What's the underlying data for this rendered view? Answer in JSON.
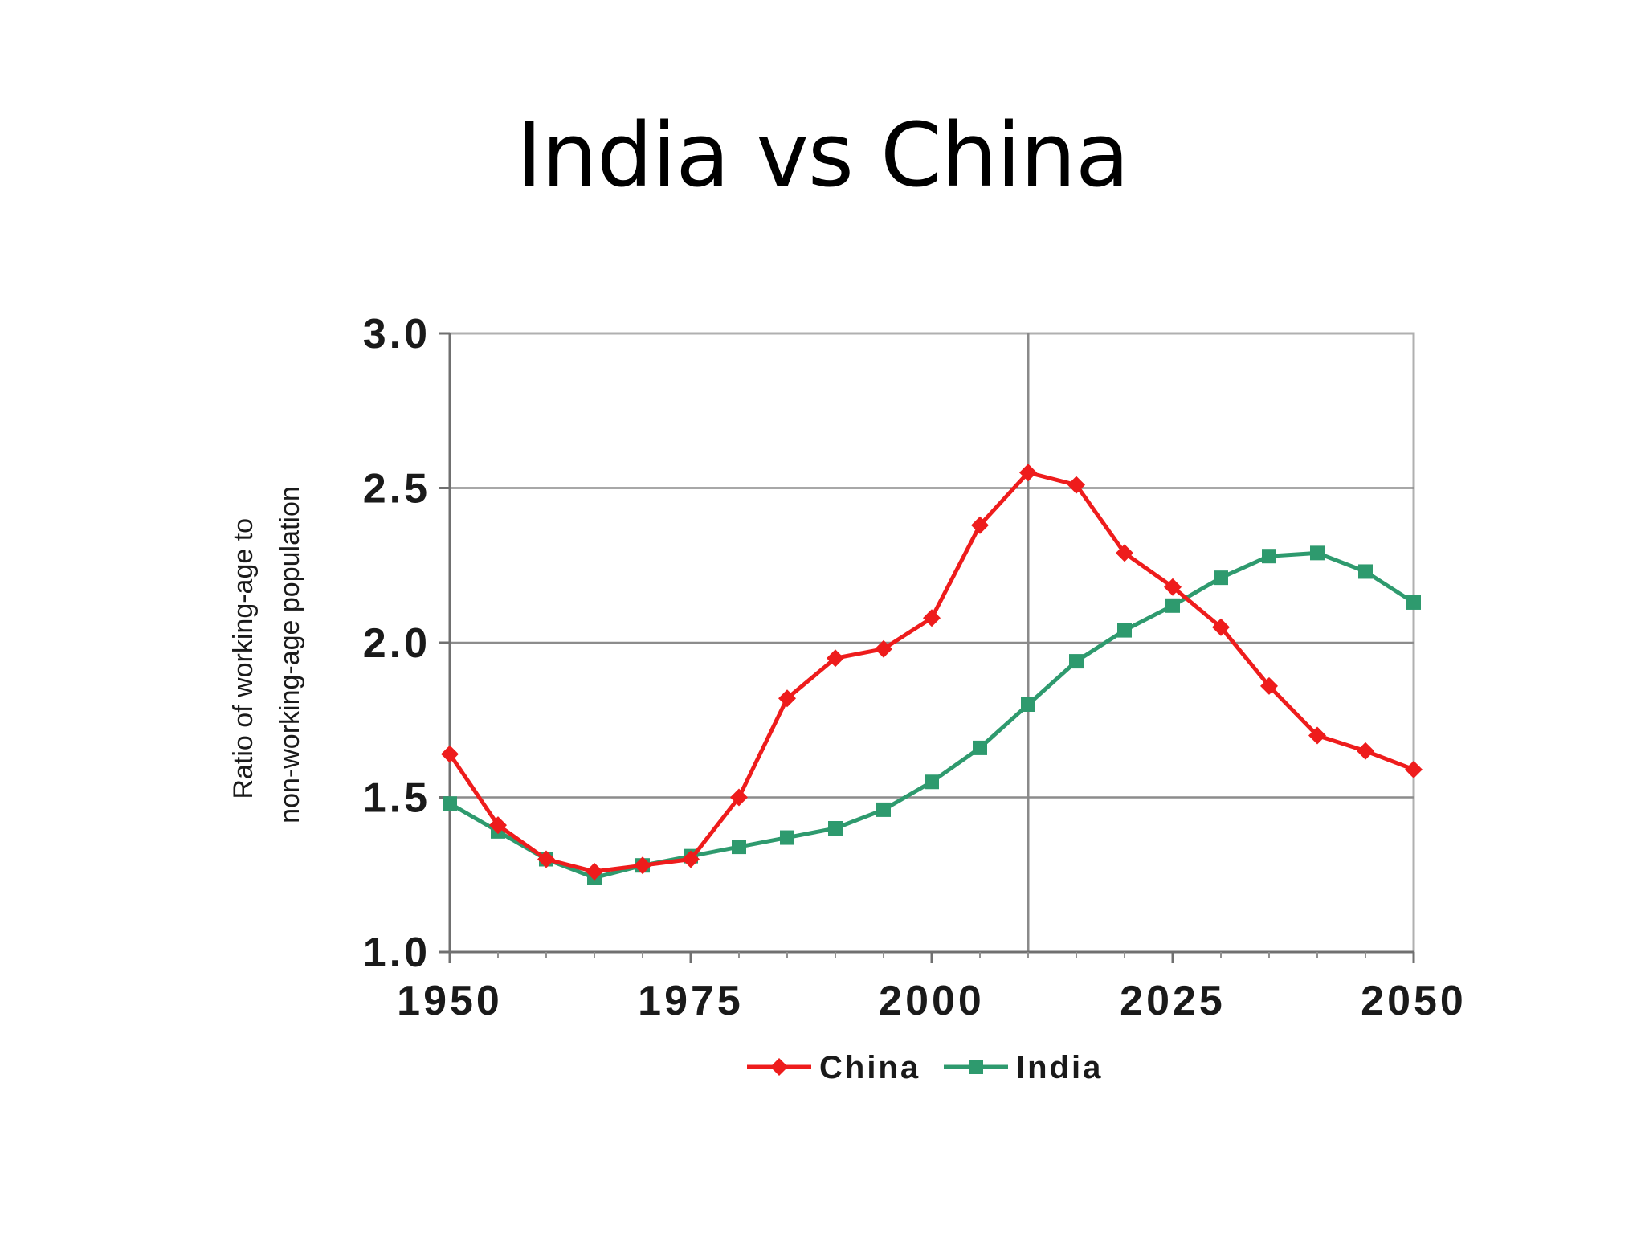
{
  "slide": {
    "title": "India vs China"
  },
  "chart_data": {
    "type": "line",
    "title": "",
    "xlabel": "",
    "ylabel": "Ratio of working-age to non-working-age population",
    "ylabel_lines": [
      "Ratio of working-age to",
      "non-working-age population"
    ],
    "x_ticks": [
      "1950",
      "1975",
      "2000",
      "2025",
      "2050"
    ],
    "y_ticks": [
      "1.0",
      "1.5",
      "2.0",
      "2.5",
      "3.0"
    ],
    "xlim": [
      1950,
      2050
    ],
    "ylim": [
      1.0,
      3.0
    ],
    "grid": "horizontal",
    "legend_position": "bottom",
    "reference_line_x": 2010,
    "x": [
      1950,
      1955,
      1960,
      1965,
      1970,
      1975,
      1980,
      1985,
      1990,
      1995,
      2000,
      2005,
      2010,
      2015,
      2020,
      2025,
      2030,
      2035,
      2040,
      2045,
      2050
    ],
    "series": [
      {
        "name": "China",
        "color": "#ee1c1c",
        "marker": "diamond",
        "values": [
          1.64,
          1.41,
          1.3,
          1.26,
          1.28,
          1.3,
          1.5,
          1.82,
          1.95,
          1.98,
          2.08,
          2.38,
          2.55,
          2.51,
          2.29,
          2.18,
          2.05,
          1.86,
          1.7,
          1.65,
          1.59
        ]
      },
      {
        "name": "India",
        "color": "#2e9a6e",
        "marker": "square",
        "values": [
          1.48,
          1.39,
          1.3,
          1.24,
          1.28,
          1.31,
          1.34,
          1.37,
          1.4,
          1.46,
          1.55,
          1.66,
          1.8,
          1.94,
          2.04,
          2.12,
          2.21,
          2.28,
          2.29,
          2.23,
          2.13
        ]
      }
    ]
  }
}
